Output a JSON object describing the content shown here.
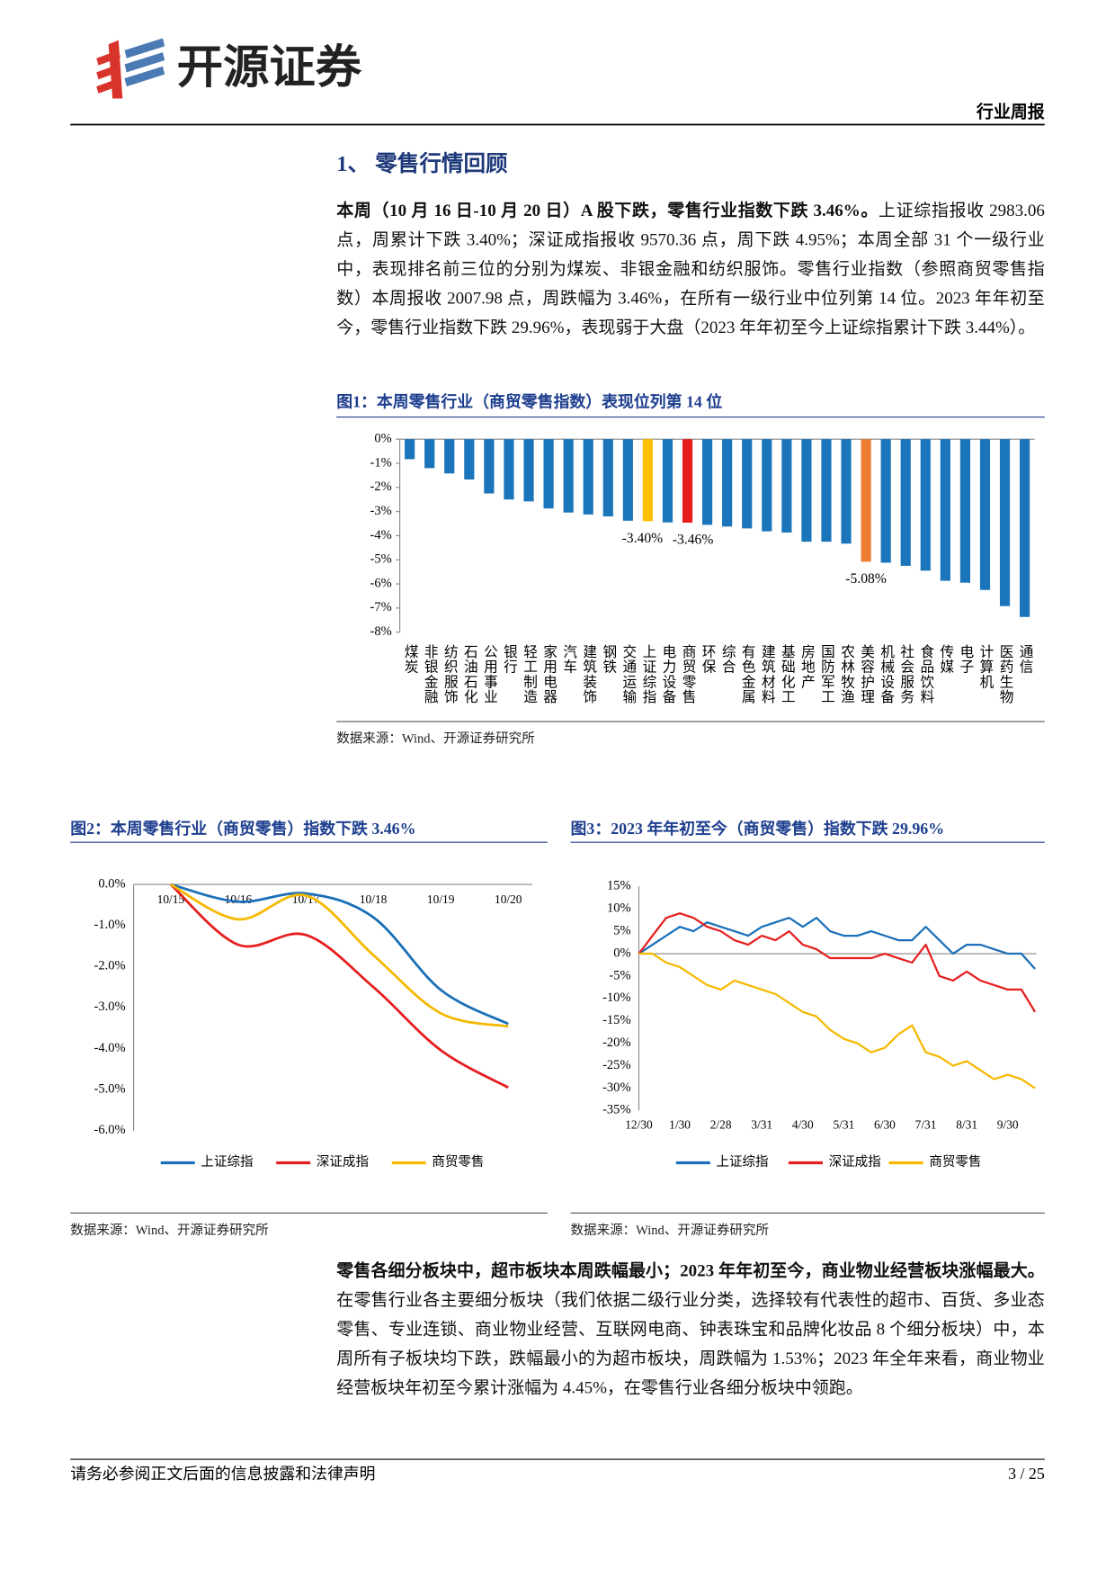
{
  "header": {
    "brand": "开源证券",
    "report_type": "行业周报"
  },
  "section_title": "1、 零售行情回顾",
  "paragraphs": [
    {
      "bold": "本周（10 月 16 日-10 月 20 日）A 股下跌，零售行业指数下跌 3.46%。",
      "text": "上证综指报收 2983.06 点，周累计下跌 3.40%；深证成指报收 9570.36 点，周下跌 4.95%；本周全部 31 个一级行业中，表现排名前三位的分别为煤炭、非银金融和纺织服饰。零售行业指数（参照商贸零售指数）本周报收 2007.98 点，周跌幅为 3.46%，在所有一级行业中位列第 14 位。2023 年年初至今，零售行业指数下跌 29.96%，表现弱于大盘（2023 年年初至今上证综指累计下跌 3.44%）。"
    },
    {
      "bold": "零售各细分板块中，超市板块本周跌幅最小；2023 年年初至今，商业物业经营板块涨幅最大。",
      "text": "在零售行业各主要细分板块（我们依据二级行业分类，选择较有代表性的超市、百货、多业态零售、专业连锁、商业物业经营、互联网电商、钟表珠宝和品牌化妆品 8 个细分板块）中，本周所有子板块均下跌，跌幅最小的为超市板块，周跌幅为 1.53%；2023 年全年来看，商业物业经营板块年初至今累计涨幅为 4.45%，在零售行业各细分板块中领跑。"
    }
  ],
  "chart_data": [
    {
      "type": "bar",
      "title": "图1：本周零售行业（商贸零售指数）表现位列第 14 位",
      "source": "数据来源：Wind、开源证券研究所",
      "categories": [
        "煤炭",
        "非银金融",
        "纺织服饰",
        "石油石化",
        "公用事业",
        "银行",
        "轻工制造",
        "家用电器",
        "汽车",
        "建筑装饰",
        "钢铁",
        "交通运输",
        "上证综指",
        "电力设备",
        "商贸零售",
        "环保",
        "综合",
        "有色金属",
        "建筑材料",
        "基础化工",
        "房地产",
        "国防军工",
        "农林牧渔",
        "美容护理",
        "机械设备",
        "社会服务",
        "食品饮料",
        "传媒",
        "电子",
        "计算机",
        "医药生物",
        "通信"
      ],
      "values": [
        -0.83,
        -1.2,
        -1.42,
        -1.67,
        -2.25,
        -2.5,
        -2.58,
        -2.87,
        -3.04,
        -3.12,
        -3.2,
        -3.38,
        -3.4,
        -3.45,
        -3.46,
        -3.55,
        -3.62,
        -3.7,
        -3.82,
        -3.87,
        -4.25,
        -4.25,
        -4.33,
        -5.08,
        -5.12,
        -5.25,
        -5.45,
        -5.87,
        -5.95,
        -6.25,
        -6.92,
        -7.37
      ],
      "value_labels": [
        null,
        null,
        null,
        null,
        null,
        null,
        null,
        null,
        null,
        null,
        null,
        null,
        "-3.40%",
        null,
        "-3.46%",
        null,
        null,
        null,
        null,
        null,
        null,
        null,
        null,
        "-5.08%",
        null,
        null,
        null,
        null,
        null,
        null,
        null,
        null
      ],
      "colors": [
        "#1b75bb",
        "#1b75bb",
        "#1b75bb",
        "#1b75bb",
        "#1b75bb",
        "#1b75bb",
        "#1b75bb",
        "#1b75bb",
        "#1b75bb",
        "#1b75bb",
        "#1b75bb",
        "#1b75bb",
        "#ffc000",
        "#1b75bb",
        "#e61e1e",
        "#1b75bb",
        "#1b75bb",
        "#1b75bb",
        "#1b75bb",
        "#1b75bb",
        "#1b75bb",
        "#1b75bb",
        "#1b75bb",
        "#ed7d31",
        "#1b75bb",
        "#1b75bb",
        "#1b75bb",
        "#1b75bb",
        "#1b75bb",
        "#1b75bb",
        "#1b75bb",
        "#1b75bb"
      ],
      "ylim": [
        -8,
        0
      ],
      "yticks": [
        {
          "value": 0,
          "label": "0%"
        },
        {
          "value": -1,
          "label": "-1%"
        },
        {
          "value": -2,
          "label": "-2%"
        },
        {
          "value": -3,
          "label": "-3%"
        },
        {
          "value": -4,
          "label": "-4%"
        },
        {
          "value": -5,
          "label": "-5%"
        },
        {
          "value": -6,
          "label": "-6%"
        },
        {
          "value": -7,
          "label": "-7%"
        },
        {
          "value": -8,
          "label": "-8%"
        }
      ]
    },
    {
      "type": "line",
      "title": "图2：本周零售行业（商贸零售）指数下跌 3.46%",
      "source": "数据来源：Wind、开源证券研究所",
      "x": [
        "10/15",
        "10/16",
        "10/17",
        "10/18",
        "10/19",
        "10/20"
      ],
      "series": [
        {
          "name": "上证综指",
          "color": "#1a6fb8",
          "values": [
            0,
            -0.42,
            -0.22,
            -0.8,
            -2.57,
            -3.4
          ]
        },
        {
          "name": "深证成指",
          "color": "#e61e1e",
          "values": [
            0,
            -1.47,
            -1.23,
            -2.5,
            -4.04,
            -4.95
          ]
        },
        {
          "name": "商贸零售",
          "color": "#f5b800",
          "values": [
            0,
            -0.85,
            -0.27,
            -1.72,
            -3.14,
            -3.46
          ]
        }
      ],
      "ylim": [
        -6,
        0
      ],
      "yticks": [
        {
          "value": 0,
          "label": "0.0%"
        },
        {
          "value": -1,
          "label": "-1.0%"
        },
        {
          "value": -2,
          "label": "-2.0%"
        },
        {
          "value": -3,
          "label": "-3.0%"
        },
        {
          "value": -4,
          "label": "-4.0%"
        },
        {
          "value": -5,
          "label": "-5.0%"
        },
        {
          "value": -6,
          "label": "-6.0%"
        }
      ]
    },
    {
      "type": "line",
      "title": "图3：2023 年年初至今（商贸零售）指数下跌 29.96%",
      "source": "数据来源：Wind、开源证券研究所",
      "x": [
        "12/30",
        "1/10",
        "1/20",
        "1/30",
        "2/10",
        "2/20",
        "2/28",
        "3/10",
        "3/20",
        "3/31",
        "4/10",
        "4/20",
        "4/30",
        "5/10",
        "5/20",
        "5/31",
        "6/10",
        "6/20",
        "6/30",
        "7/10",
        "7/20",
        "7/31",
        "8/10",
        "8/20",
        "8/31",
        "9/10",
        "9/20",
        "9/30",
        "10/10",
        "10/20"
      ],
      "xticks": [
        "12/30",
        "1/30",
        "2/28",
        "3/31",
        "4/30",
        "5/31",
        "6/30",
        "7/31",
        "8/31",
        "9/30"
      ],
      "series": [
        {
          "name": "上证综指",
          "color": "#1a6fb8",
          "values": [
            0,
            2,
            4,
            6,
            5,
            7,
            6,
            5,
            4,
            6,
            7,
            8,
            6,
            8,
            5,
            4,
            4,
            5,
            4,
            3,
            3,
            6,
            3,
            0,
            2,
            2,
            1,
            0,
            0,
            -3.4
          ]
        },
        {
          "name": "深证成指",
          "color": "#e61e1e",
          "values": [
            0,
            4,
            8,
            9,
            8,
            6,
            5,
            3,
            2,
            4,
            3,
            5,
            2,
            1,
            -1,
            -1,
            -1,
            -1,
            0,
            -1,
            -2,
            2,
            -5,
            -6,
            -4,
            -6,
            -7,
            -8,
            -8,
            -13
          ]
        },
        {
          "name": "商贸零售",
          "color": "#f5b800",
          "values": [
            0,
            0,
            -2,
            -3,
            -5,
            -7,
            -8,
            -6,
            -7,
            -8,
            -9,
            -11,
            -13,
            -14,
            -17,
            -19,
            -20,
            -22,
            -21,
            -18,
            -16,
            -22,
            -23,
            -25,
            -24,
            -26,
            -28,
            -27,
            -28,
            -30
          ]
        }
      ],
      "ylim": [
        -35,
        15
      ],
      "yticks": [
        {
          "value": 15,
          "label": "15%"
        },
        {
          "value": 10,
          "label": "10%"
        },
        {
          "value": 5,
          "label": "5%"
        },
        {
          "value": 0,
          "label": "0%"
        },
        {
          "value": -5,
          "label": "-5%"
        },
        {
          "value": -10,
          "label": "-10%"
        },
        {
          "value": -15,
          "label": "-15%"
        },
        {
          "value": -20,
          "label": "-20%"
        },
        {
          "value": -25,
          "label": "-25%"
        },
        {
          "value": -30,
          "label": "-30%"
        },
        {
          "value": -35,
          "label": "-35%"
        }
      ]
    }
  ],
  "footer": {
    "disclaimer": "请务必参阅正文后面的信息披露和法律声明",
    "page": "3 / 25"
  }
}
